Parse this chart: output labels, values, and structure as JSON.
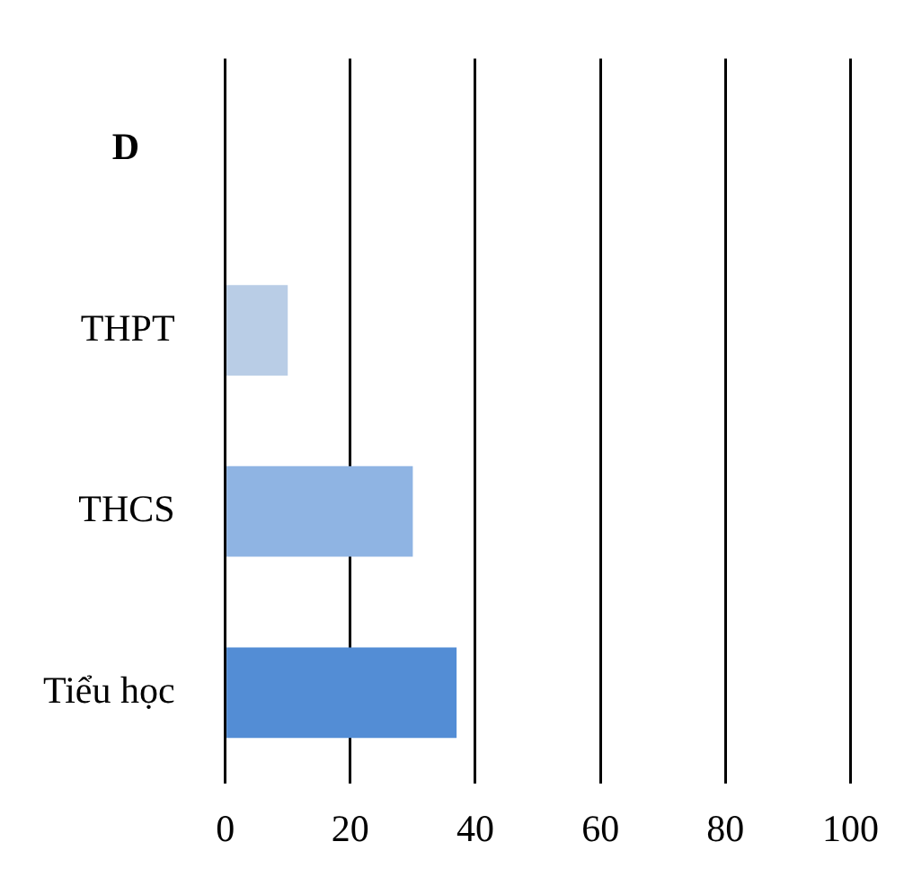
{
  "chart_data": {
    "type": "bar",
    "orientation": "horizontal",
    "title": "D",
    "categories": [
      null,
      "THPT",
      "THCS",
      "Tiểu học"
    ],
    "values": [
      null,
      10,
      30,
      37
    ],
    "colors": [
      "#538dd5",
      "#b9cde6",
      "#8fb4e3",
      "#538dd5"
    ],
    "xlim": [
      0,
      100
    ],
    "xticks": [
      0,
      20,
      40,
      60,
      80,
      100
    ],
    "grid": "x",
    "legend": false
  }
}
